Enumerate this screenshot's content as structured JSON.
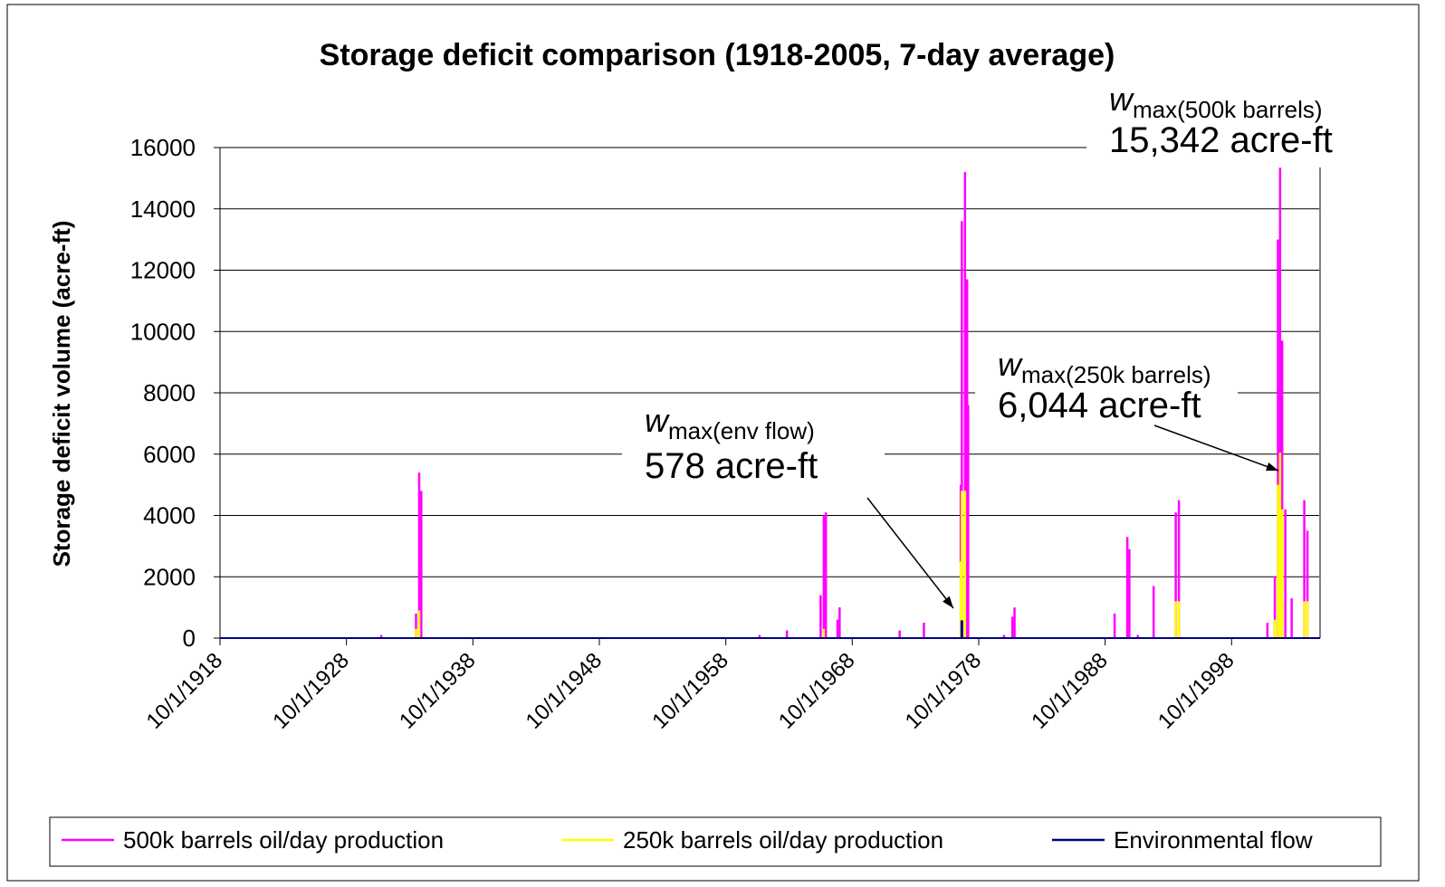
{
  "chart_data": {
    "type": "line",
    "title": "Storage deficit comparison (1918-2005, 7-day average)",
    "y_label": "Storage deficit volume (acre-ft)",
    "ylim": [
      0,
      16000
    ],
    "yticks": [
      0,
      2000,
      4000,
      6000,
      8000,
      10000,
      12000,
      14000,
      16000
    ],
    "xlim": [
      "10/1/1918",
      "9/30/2005"
    ],
    "xticks": [
      "10/1/1918",
      "10/1/1928",
      "10/1/1938",
      "10/1/1948",
      "10/1/1958",
      "10/1/1968",
      "10/1/1978",
      "10/1/1988",
      "10/1/1998"
    ],
    "grid": true,
    "legend": "bottom",
    "x": [
      "7/1/1931",
      "4/1/1934",
      "7/1/1934",
      "9/1/1934",
      "6/1/1961",
      "8/1/1963",
      "4/1/1966",
      "7/1/1966",
      "9/1/1966",
      "8/1/1967",
      "10/1/1967",
      "7/1/1972",
      "6/1/1974",
      "5/1/1977",
      "6/1/1977",
      "9/1/1977",
      "11/1/1977",
      "12/1/1977",
      "10/1/1980",
      "6/1/1981",
      "8/1/1981",
      "7/1/1989",
      "7/1/1990",
      "9/1/1990",
      "5/1/1991",
      "8/1/1992",
      "5/1/1994",
      "8/1/1994",
      "8/1/2001",
      "3/1/2002",
      "6/1/2002",
      "8/1/2002",
      "10/1/2002",
      "1/1/2003",
      "7/1/2003",
      "7/1/2004",
      "10/1/2004"
    ],
    "series": [
      {
        "name": "500k barrels oil/day production",
        "color": "#ff00ff",
        "values": [
          100,
          800,
          5400,
          4800,
          100,
          250,
          1400,
          4000,
          4100,
          600,
          1000,
          250,
          500,
          5000,
          13600,
          15200,
          11700,
          7600,
          100,
          700,
          1000,
          800,
          3300,
          2900,
          100,
          1700,
          4100,
          4500,
          500,
          2000,
          13000,
          15342,
          9700,
          4200,
          1300,
          4500,
          3500
        ]
      },
      {
        "name": "250k barrels oil/day production",
        "color": "#ffff00",
        "values": [
          0,
          300,
          900,
          0,
          0,
          0,
          0,
          300,
          0,
          0,
          0,
          0,
          0,
          2500,
          4800,
          4800,
          0,
          0,
          0,
          0,
          0,
          0,
          0,
          0,
          0,
          0,
          1200,
          1200,
          0,
          600,
          5000,
          6044,
          4200,
          0,
          0,
          1200,
          1200
        ]
      },
      {
        "name": "Environmental flow",
        "color": "#000080",
        "values": [
          0,
          0,
          0,
          0,
          0,
          0,
          0,
          0,
          0,
          0,
          0,
          0,
          0,
          0,
          578,
          0,
          0,
          0,
          0,
          0,
          0,
          0,
          0,
          0,
          0,
          0,
          0,
          0,
          0,
          0,
          0,
          0,
          0,
          0,
          0,
          0,
          0
        ]
      }
    ],
    "annotations": [
      {
        "symbol": "w",
        "subscript": "max(500k barrels)",
        "text": "15,342 acre-ft"
      },
      {
        "symbol": "w",
        "subscript": "max(250k barrels)",
        "text": "6,044 acre-ft"
      },
      {
        "symbol": "w",
        "subscript": "max(env flow)",
        "text": "578 acre-ft"
      }
    ]
  }
}
